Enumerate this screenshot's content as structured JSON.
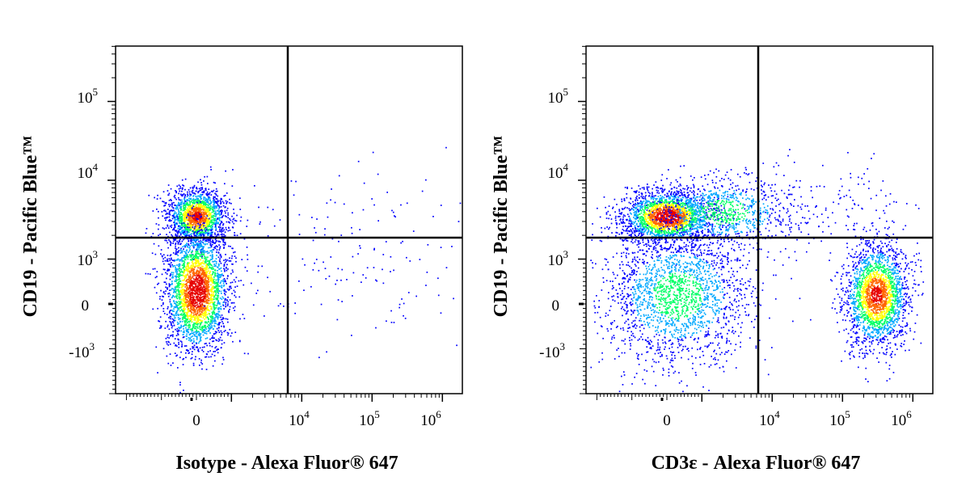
{
  "chart_data": [
    {
      "type": "scatter",
      "subtype": "flow-cytometry-density-dot-plot",
      "xlabel": "Isotype - Alexa Fluor® 647",
      "ylabel": "CD19 - Pacific Blue™",
      "x_scale": "biexponential",
      "y_scale": "biexponential",
      "x_ticks": [
        {
          "value": "0",
          "base": "0",
          "exp": ""
        },
        {
          "value": 10000,
          "base": "10",
          "exp": "4"
        },
        {
          "value": 100000,
          "base": "10",
          "exp": "5"
        },
        {
          "value": 1000000,
          "base": "10",
          "exp": "6"
        }
      ],
      "y_ticks": [
        {
          "value": -1000,
          "base": "-10",
          "exp": "3"
        },
        {
          "value": "0",
          "base": "0",
          "exp": ""
        },
        {
          "value": 1000,
          "base": "10",
          "exp": "3"
        },
        {
          "value": 10000,
          "base": "10",
          "exp": "4"
        },
        {
          "value": 100000,
          "base": "10",
          "exp": "5"
        }
      ],
      "quadrant_gate": {
        "x": 9500,
        "y": 1700
      },
      "populations": [
        {
          "x_center": 0,
          "y_center": 3500,
          "relative_density": "high",
          "cells": 1700
        },
        {
          "x_center": 0,
          "y_center": 300,
          "relative_density": "very high",
          "cells": 2800
        },
        {
          "x_center": 40000,
          "y_center": 800,
          "relative_density": "sparse",
          "cells": 130
        },
        {
          "x_center": 40000,
          "y_center": 6000,
          "relative_density": "sparse",
          "cells": 40
        }
      ],
      "colormap": [
        "#0000ff",
        "#00a8ff",
        "#00ff66",
        "#ffff00",
        "#ff6600",
        "#e60000"
      ]
    },
    {
      "type": "scatter",
      "subtype": "flow-cytometry-density-dot-plot",
      "xlabel": "CD3ε - Alexa Fluor® 647",
      "ylabel": "CD19 - Pacific Blue™",
      "x_scale": "biexponential",
      "y_scale": "biexponential",
      "x_ticks": [
        {
          "value": "0",
          "base": "0",
          "exp": ""
        },
        {
          "value": 10000,
          "base": "10",
          "exp": "4"
        },
        {
          "value": 100000,
          "base": "10",
          "exp": "5"
        },
        {
          "value": 1000000,
          "base": "10",
          "exp": "6"
        }
      ],
      "y_ticks": [
        {
          "value": -1000,
          "base": "-10",
          "exp": "3"
        },
        {
          "value": "0",
          "base": "0",
          "exp": ""
        },
        {
          "value": 1000,
          "base": "10",
          "exp": "3"
        },
        {
          "value": 10000,
          "base": "10",
          "exp": "4"
        },
        {
          "value": 100000,
          "base": "10",
          "exp": "5"
        }
      ],
      "quadrant_gate": {
        "x": 9500,
        "y": 1700
      },
      "populations": [
        {
          "x_center": 0,
          "y_center": 3500,
          "relative_density": "very high",
          "cells": 2200
        },
        {
          "x_center": 2000,
          "y_center": 4000,
          "relative_density": "medium",
          "cells": 900
        },
        {
          "x_center": 300,
          "y_center": 200,
          "relative_density": "medium",
          "cells": 2000
        },
        {
          "x_center": 300000,
          "y_center": 200,
          "relative_density": "high",
          "cells": 2200
        },
        {
          "x_center": 60000,
          "y_center": 5000,
          "relative_density": "sparse",
          "cells": 120
        }
      ],
      "colormap": [
        "#0000ff",
        "#00a8ff",
        "#00ff66",
        "#ffff00",
        "#ff6600",
        "#e60000"
      ]
    }
  ]
}
